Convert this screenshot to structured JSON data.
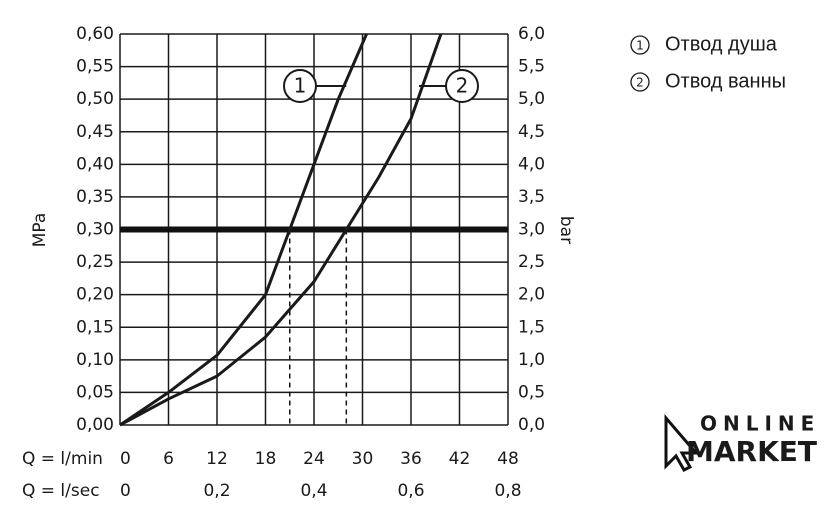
{
  "chart_data": {
    "type": "line",
    "y_label": "MPa",
    "y2_label": "bar",
    "x_label": "Q = l/min",
    "x2_label": "Q = l/sec",
    "xlim": [
      0,
      48
    ],
    "xticks": [
      0,
      6,
      12,
      18,
      24,
      30,
      36,
      42,
      48
    ],
    "x2lim": [
      0,
      0.8
    ],
    "x2ticks": [
      0,
      {
        "value": 0.2,
        "label": "0,2"
      },
      {
        "value": 0.4,
        "label": "0,4"
      },
      {
        "value": 0.6,
        "label": "0,6"
      },
      {
        "value": 0.8,
        "label": "0,8"
      }
    ],
    "ylim": [
      0,
      0.6
    ],
    "yticks": [
      {
        "value": 0,
        "label": "0,00"
      },
      {
        "value": 0.05,
        "label": "0,05"
      },
      {
        "value": 0.1,
        "label": "0,10"
      },
      {
        "value": 0.15,
        "label": "0,15"
      },
      {
        "value": 0.2,
        "label": "0,20"
      },
      {
        "value": 0.25,
        "label": "0,25"
      },
      {
        "value": 0.3,
        "label": "0,30"
      },
      {
        "value": 0.35,
        "label": "0,35"
      },
      {
        "value": 0.4,
        "label": "0,40"
      },
      {
        "value": 0.45,
        "label": "0,45"
      },
      {
        "value": 0.5,
        "label": "0,50"
      },
      {
        "value": 0.55,
        "label": "0,55"
      },
      {
        "value": 0.6,
        "label": "0,60"
      }
    ],
    "y2lim": [
      0,
      6
    ],
    "y2ticks": [
      {
        "value": 0,
        "label": "0,0"
      },
      {
        "value": 0.5,
        "label": "0,5"
      },
      {
        "value": 1,
        "label": "1,0"
      },
      {
        "value": 1.5,
        "label": "1,5"
      },
      {
        "value": 2,
        "label": "2,0"
      },
      {
        "value": 2.5,
        "label": "2,5"
      },
      {
        "value": 3,
        "label": "3,0"
      },
      {
        "value": 3.5,
        "label": "3,5"
      },
      {
        "value": 4,
        "label": "4,0"
      },
      {
        "value": 4.5,
        "label": "4,5"
      },
      {
        "value": 5,
        "label": "5,0"
      },
      {
        "value": 5.5,
        "label": "5,5"
      },
      {
        "value": 6,
        "label": "6,0"
      }
    ],
    "grid": true,
    "reference_y": 0.3,
    "reference_x": [
      21,
      28
    ],
    "series": [
      {
        "name": "Отвод душа",
        "label": "1",
        "color": "#1a1a1a",
        "x": [
          0,
          6,
          12,
          18,
          21,
          24,
          27,
          30.5
        ],
        "values": [
          0,
          0.05,
          0.107,
          0.2,
          0.3,
          0.4,
          0.5,
          0.6
        ]
      },
      {
        "name": "Отвод ванны",
        "label": "2",
        "color": "#1a1a1a",
        "x": [
          0,
          6,
          12,
          18,
          24,
          28,
          32,
          36,
          39.7
        ],
        "values": [
          0,
          0.04,
          0.075,
          0.135,
          0.22,
          0.3,
          0.38,
          0.47,
          0.6
        ]
      }
    ],
    "logo": [
      "ONLINE",
      "MARKET"
    ]
  }
}
